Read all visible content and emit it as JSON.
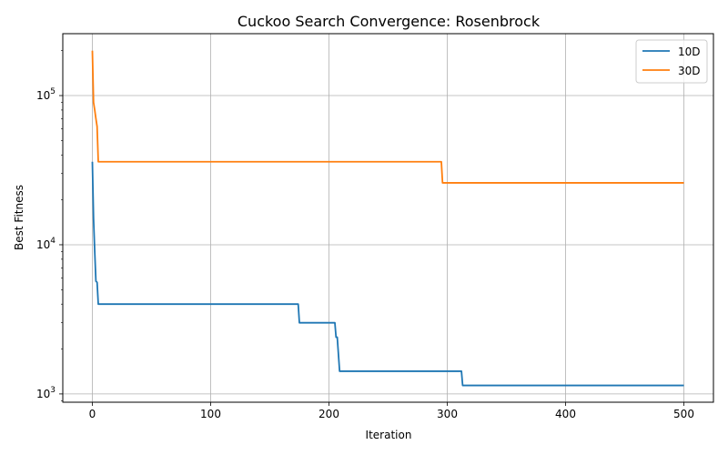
{
  "chart_data": {
    "type": "line",
    "title": "Cuckoo Search Convergence: Rosenbrock",
    "xlabel": "Iteration",
    "ylabel": "Best Fitness",
    "xlim": [
      -25,
      525
    ],
    "ylim": [
      880,
      260000
    ],
    "yscale": "log",
    "grid": true,
    "legend_position": "top-right",
    "x_ticks": [
      0,
      100,
      200,
      300,
      400,
      500
    ],
    "x_tick_labels": [
      "0",
      "100",
      "200",
      "300",
      "400",
      "500"
    ],
    "y_ticks": [
      1000,
      10000,
      100000
    ],
    "y_tick_labels": [
      {
        "base": "10",
        "exp": "3"
      },
      {
        "base": "10",
        "exp": "4"
      },
      {
        "base": "10",
        "exp": "5"
      }
    ],
    "series": [
      {
        "name": "10D",
        "color": "#1f77b4",
        "points": [
          [
            0,
            36000
          ],
          [
            1,
            15000
          ],
          [
            2,
            9000
          ],
          [
            3,
            5700
          ],
          [
            4,
            5600
          ],
          [
            5,
            4000
          ],
          [
            174,
            4000
          ],
          [
            175,
            3000
          ],
          [
            205,
            3000
          ],
          [
            206,
            2400
          ],
          [
            207,
            2400
          ],
          [
            209,
            1420
          ],
          [
            312,
            1420
          ],
          [
            313,
            1140
          ],
          [
            500,
            1140
          ]
        ]
      },
      {
        "name": "30D",
        "color": "#ff7f0e",
        "points": [
          [
            0,
            200000
          ],
          [
            1,
            90000
          ],
          [
            2,
            80000
          ],
          [
            3,
            70000
          ],
          [
            4,
            62000
          ],
          [
            5,
            36000
          ],
          [
            295,
            36000
          ],
          [
            296,
            26000
          ],
          [
            500,
            26000
          ]
        ]
      }
    ]
  }
}
